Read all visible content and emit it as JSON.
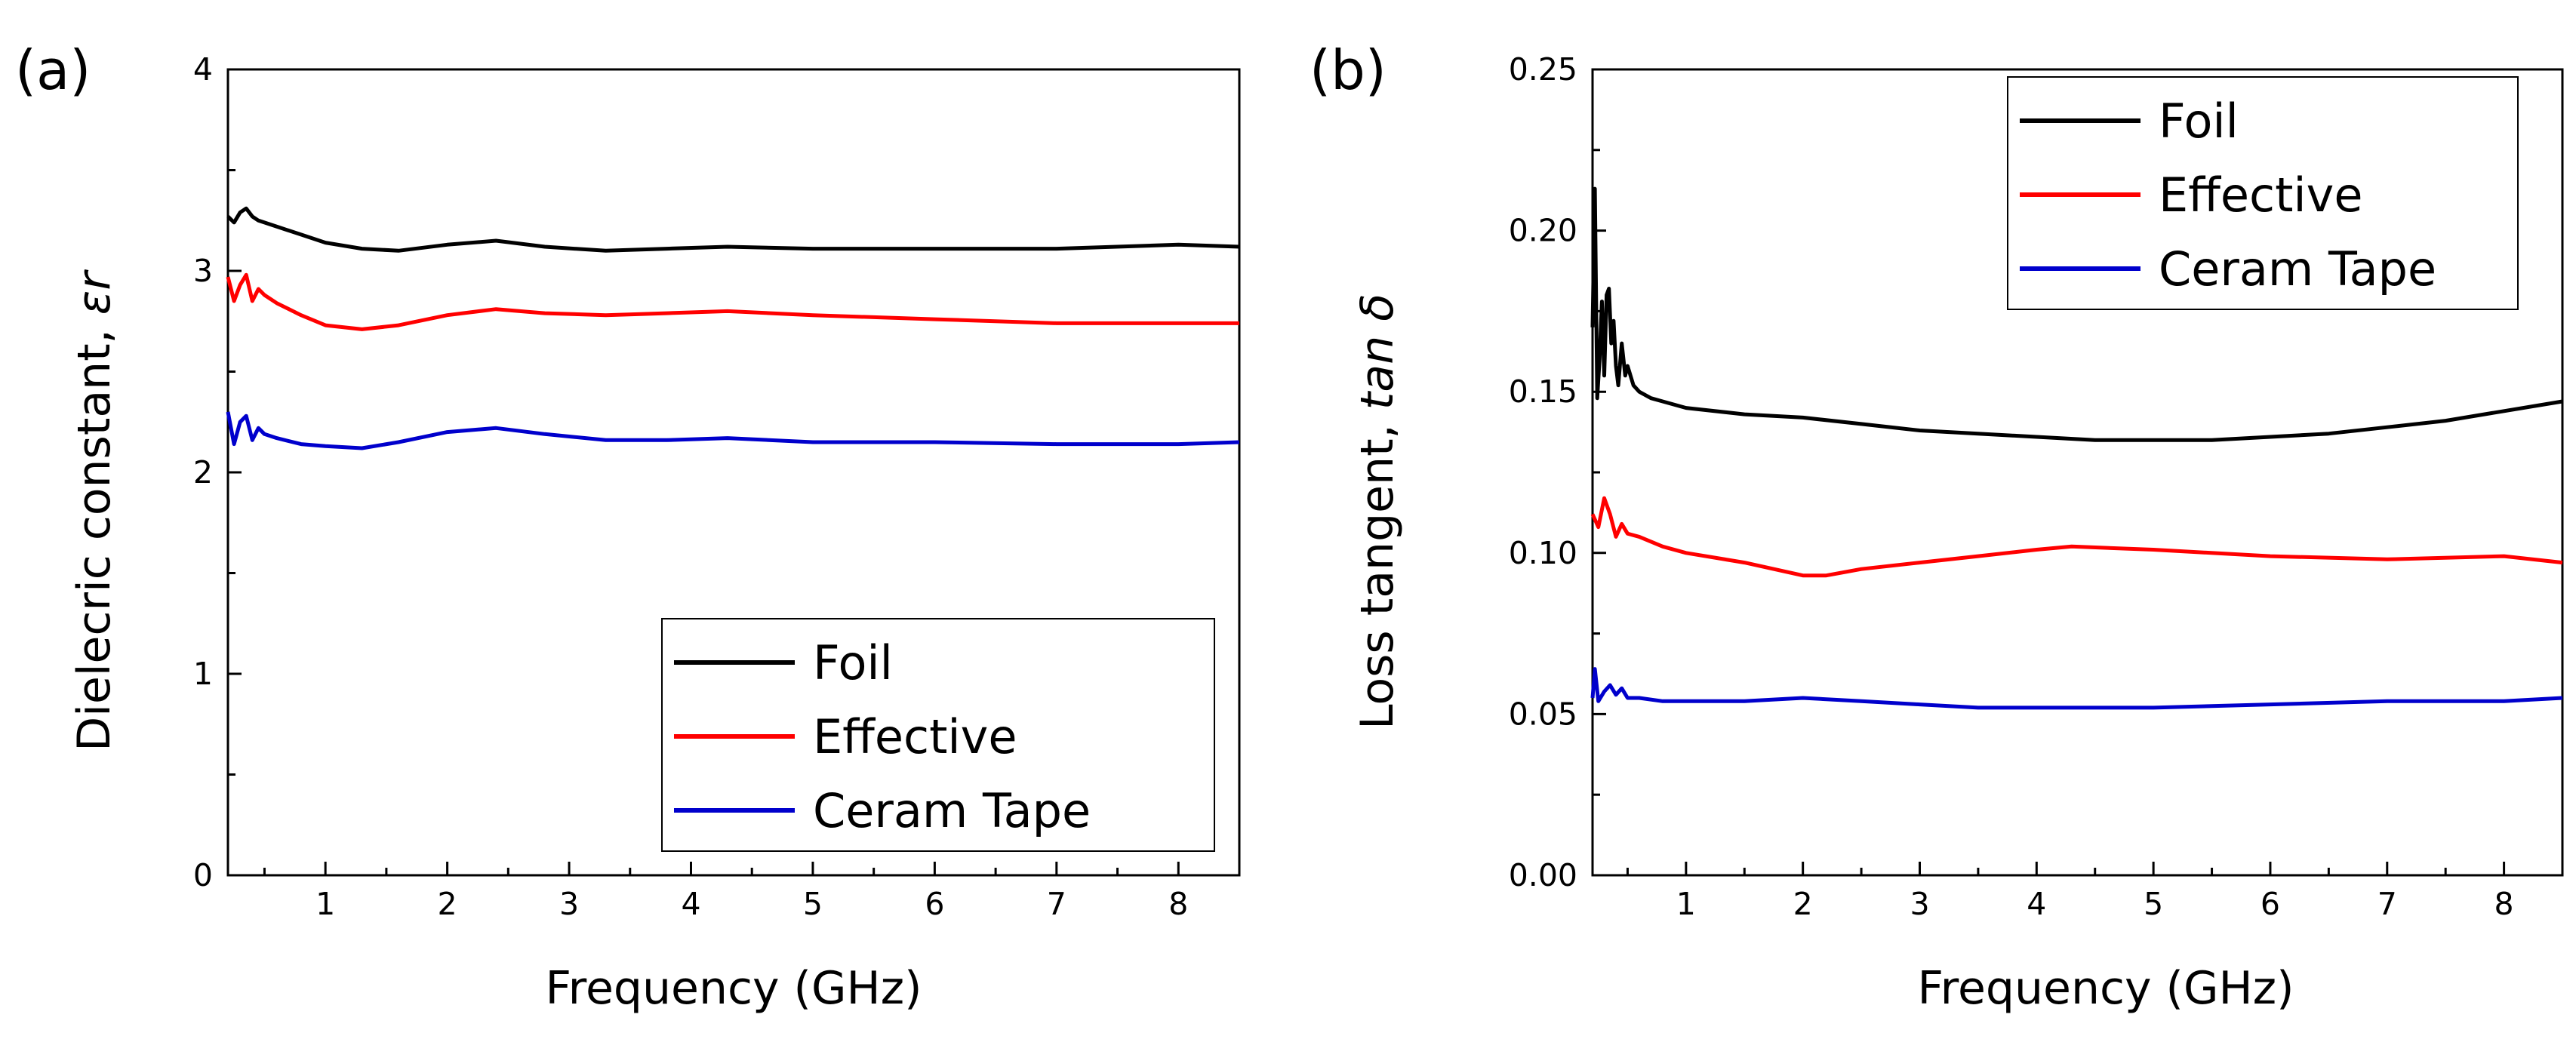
{
  "chart_data": [
    {
      "panel": "(a)",
      "type": "line",
      "xlabel": "Frequency (GHz)",
      "ylabel_text": "Dielecric constant, ",
      "ylabel_symbol": "εr",
      "xlim": [
        0.2,
        8.5
      ],
      "ylim": [
        0,
        4
      ],
      "xticks": [
        1,
        2,
        3,
        4,
        5,
        6,
        7,
        8
      ],
      "yticks": [
        0,
        1,
        2,
        3,
        4
      ],
      "legend_position": "bottom-right",
      "series": [
        {
          "name": "Foil",
          "color": "#000000",
          "x": [
            0.2,
            0.25,
            0.3,
            0.35,
            0.4,
            0.45,
            0.5,
            0.6,
            0.8,
            1.0,
            1.3,
            1.6,
            2.0,
            2.4,
            2.8,
            3.3,
            3.8,
            4.3,
            5.0,
            6.0,
            7.0,
            8.0,
            8.5
          ],
          "y": [
            3.27,
            3.24,
            3.29,
            3.31,
            3.27,
            3.25,
            3.24,
            3.22,
            3.18,
            3.14,
            3.11,
            3.1,
            3.13,
            3.15,
            3.12,
            3.1,
            3.11,
            3.12,
            3.11,
            3.11,
            3.11,
            3.13,
            3.12
          ]
        },
        {
          "name": "Effective",
          "color": "#ff0000",
          "x": [
            0.2,
            0.25,
            0.3,
            0.35,
            0.4,
            0.45,
            0.5,
            0.6,
            0.8,
            1.0,
            1.3,
            1.6,
            2.0,
            2.4,
            2.8,
            3.3,
            3.8,
            4.3,
            5.0,
            6.0,
            7.0,
            8.0,
            8.5
          ],
          "y": [
            2.97,
            2.85,
            2.93,
            2.98,
            2.85,
            2.91,
            2.88,
            2.84,
            2.78,
            2.73,
            2.71,
            2.73,
            2.78,
            2.81,
            2.79,
            2.78,
            2.79,
            2.8,
            2.78,
            2.76,
            2.74,
            2.74,
            2.74
          ]
        },
        {
          "name": "Ceram Tape",
          "color": "#0000cc",
          "x": [
            0.2,
            0.25,
            0.3,
            0.35,
            0.4,
            0.45,
            0.5,
            0.6,
            0.8,
            1.0,
            1.3,
            1.6,
            2.0,
            2.4,
            2.8,
            3.3,
            3.8,
            4.3,
            5.0,
            6.0,
            7.0,
            8.0,
            8.5
          ],
          "y": [
            2.3,
            2.14,
            2.25,
            2.28,
            2.16,
            2.22,
            2.19,
            2.17,
            2.14,
            2.13,
            2.12,
            2.15,
            2.2,
            2.22,
            2.19,
            2.16,
            2.16,
            2.17,
            2.15,
            2.15,
            2.14,
            2.14,
            2.15
          ]
        }
      ]
    },
    {
      "panel": "(b)",
      "type": "line",
      "xlabel": "Frequency (GHz)",
      "ylabel_text": "Loss tangent, ",
      "ylabel_symbol": "tan δ",
      "xlim": [
        0.2,
        8.5
      ],
      "ylim": [
        0,
        0.25
      ],
      "xticks": [
        1,
        2,
        3,
        4,
        5,
        6,
        7,
        8
      ],
      "yticks": [
        "0.00",
        "0.05",
        "0.10",
        "0.15",
        "0.20",
        "0.25"
      ],
      "legend_position": "top-right",
      "series": [
        {
          "name": "Foil",
          "color": "#000000",
          "x": [
            0.2,
            0.22,
            0.24,
            0.26,
            0.28,
            0.3,
            0.32,
            0.34,
            0.36,
            0.38,
            0.4,
            0.42,
            0.45,
            0.48,
            0.5,
            0.55,
            0.6,
            0.7,
            0.8,
            1.0,
            1.5,
            2.0,
            2.5,
            3.0,
            3.5,
            4.0,
            4.5,
            5.0,
            5.5,
            6.0,
            6.5,
            7.0,
            7.5,
            8.0,
            8.5
          ],
          "y": [
            0.17,
            0.213,
            0.148,
            0.16,
            0.178,
            0.155,
            0.18,
            0.182,
            0.165,
            0.172,
            0.158,
            0.152,
            0.165,
            0.155,
            0.158,
            0.152,
            0.15,
            0.148,
            0.147,
            0.145,
            0.143,
            0.142,
            0.14,
            0.138,
            0.137,
            0.136,
            0.135,
            0.135,
            0.135,
            0.136,
            0.137,
            0.139,
            0.141,
            0.144,
            0.147
          ]
        },
        {
          "name": "Effective",
          "color": "#ff0000",
          "x": [
            0.2,
            0.25,
            0.3,
            0.35,
            0.4,
            0.45,
            0.5,
            0.6,
            0.8,
            1.0,
            1.5,
            2.0,
            2.2,
            2.5,
            3.0,
            3.5,
            4.0,
            4.3,
            5.0,
            6.0,
            7.0,
            8.0,
            8.5
          ],
          "y": [
            0.112,
            0.108,
            0.117,
            0.112,
            0.105,
            0.109,
            0.106,
            0.105,
            0.102,
            0.1,
            0.097,
            0.093,
            0.093,
            0.095,
            0.097,
            0.099,
            0.101,
            0.102,
            0.101,
            0.099,
            0.098,
            0.099,
            0.097
          ]
        },
        {
          "name": "Ceram Tape",
          "color": "#0000cc",
          "x": [
            0.2,
            0.22,
            0.25,
            0.3,
            0.35,
            0.4,
            0.45,
            0.5,
            0.6,
            0.8,
            1.0,
            1.5,
            2.0,
            2.5,
            3.0,
            3.5,
            4.0,
            5.0,
            6.0,
            7.0,
            8.0,
            8.5
          ],
          "y": [
            0.055,
            0.064,
            0.054,
            0.057,
            0.059,
            0.056,
            0.058,
            0.055,
            0.055,
            0.054,
            0.054,
            0.054,
            0.055,
            0.054,
            0.053,
            0.052,
            0.052,
            0.052,
            0.053,
            0.054,
            0.054,
            0.055
          ]
        }
      ]
    }
  ]
}
